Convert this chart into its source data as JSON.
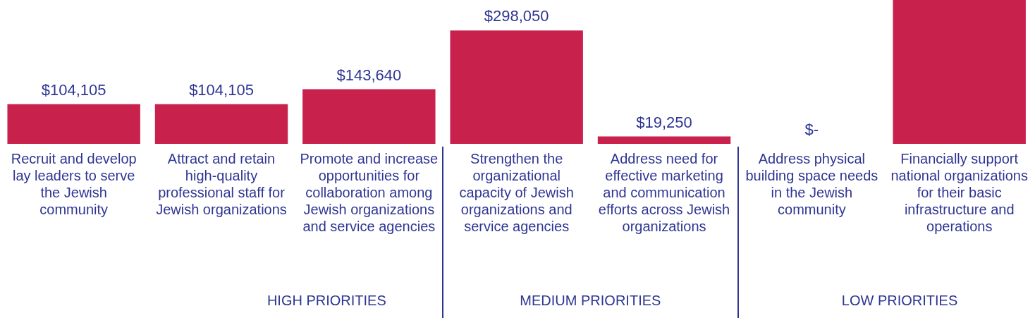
{
  "chart_data": {
    "type": "bar",
    "categories": [
      "Recruit and develop lay leaders to serve the Jewish community",
      "Attract and retain high-quality professional staff for Jewish organizations",
      "Promote and increase opportunities for collaboration among Jewish organizations and service agencies",
      "Strengthen the organizational capacity of Jewish organizations and service agencies",
      "Address need for effective marketing and communication efforts across Jewish organizations",
      "Address physical building space needs in the Jewish community",
      "Financially support national organizations for their basic infrastructure and operations"
    ],
    "values": [
      104105,
      104105,
      143640,
      298050,
      19250,
      0,
      378000
    ],
    "value_labels": [
      "$104,105",
      "$104,105",
      "$143,640",
      "$298,050",
      "$19,250",
      "$-",
      null
    ],
    "color": "#c8214b",
    "ylim": [
      0,
      378000
    ],
    "annotations": [
      "HIGH PRIORITIES",
      "MEDIUM PRIORITIES",
      "LOW PRIORITIES"
    ]
  }
}
